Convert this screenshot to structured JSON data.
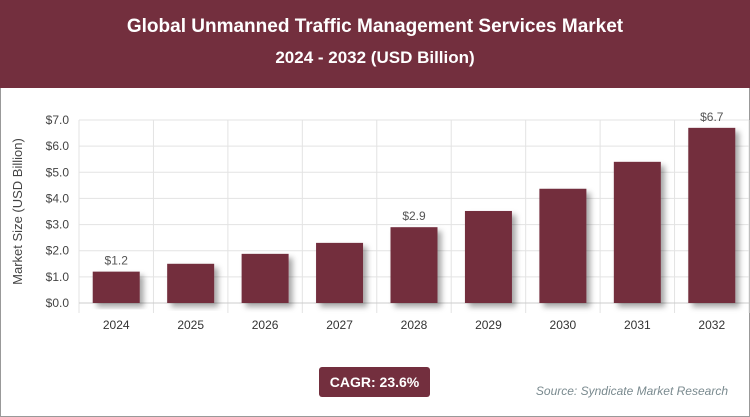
{
  "header": {
    "title": "Global Unmanned Traffic Management Services Market",
    "subtitle": "2024 - 2032 (USD Billion)"
  },
  "chart_data": {
    "type": "bar",
    "title": "Global Unmanned Traffic Management Services Market",
    "subtitle": "2024 - 2032 (USD Billion)",
    "xlabel": "",
    "ylabel": "Market Size (USD Billion)",
    "categories": [
      "2024",
      "2025",
      "2026",
      "2027",
      "2028",
      "2029",
      "2030",
      "2031",
      "2032"
    ],
    "values": [
      1.2,
      1.5,
      1.88,
      2.3,
      2.9,
      3.52,
      4.37,
      5.4,
      6.7
    ],
    "data_labels": {
      "0": "$1.2",
      "4": "$2.9",
      "8": "$6.7"
    },
    "ylim": [
      0,
      7
    ],
    "yticks": [
      "$0.0",
      "$1.0",
      "$2.0",
      "$3.0",
      "$4.0",
      "$5.0",
      "$6.0",
      "$7.0"
    ],
    "grid": true,
    "bar_color": "#732f3e"
  },
  "footer": {
    "cagr": "CAGR: 23.6%",
    "source": "Source: Syndicate Market Research"
  }
}
